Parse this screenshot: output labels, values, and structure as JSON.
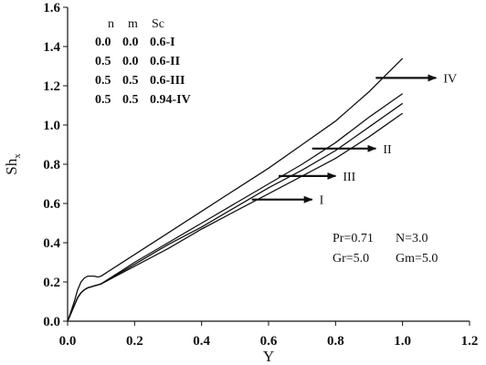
{
  "chart_data": {
    "type": "line",
    "xlabel": "Y",
    "ylabel": "Sh",
    "ylabel_sub": "x",
    "xlim": [
      0.0,
      1.2
    ],
    "ylim": [
      0.0,
      1.6
    ],
    "xticks": [
      "0.0",
      "0.2",
      "0.4",
      "0.6",
      "0.8",
      "1.0",
      "1.2"
    ],
    "yticks": [
      "0.0",
      "0.2",
      "0.4",
      "0.6",
      "0.8",
      "1.0",
      "1.2",
      "1.4",
      "1.6"
    ],
    "grid": false,
    "legend_table": {
      "headers": [
        "n",
        "m",
        "Sc"
      ],
      "rows": [
        [
          "0.0",
          "0.0",
          "0.6-I"
        ],
        [
          "0.5",
          "0.0",
          "0.6-II"
        ],
        [
          "0.5",
          "0.5",
          "0.6-III"
        ],
        [
          "0.5",
          "0.5",
          "0.94-IV"
        ]
      ]
    },
    "parameters": {
      "line1": [
        "Pr=0.71",
        "N=3.0"
      ],
      "line2": [
        "Gr=5.0",
        "Gm=5.0"
      ]
    },
    "series": [
      {
        "name": "I",
        "x": [
          0,
          0.01,
          0.02,
          0.03,
          0.04,
          0.05,
          0.06,
          0.07,
          0.08,
          0.09,
          0.1,
          0.2,
          0.3,
          0.4,
          0.5,
          0.6,
          0.7,
          0.8,
          0.9,
          1.0
        ],
        "y": [
          0,
          0.04,
          0.08,
          0.12,
          0.145,
          0.16,
          0.17,
          0.175,
          0.18,
          0.185,
          0.19,
          0.28,
          0.37,
          0.47,
          0.56,
          0.65,
          0.74,
          0.83,
          0.94,
          1.06
        ]
      },
      {
        "name": "II",
        "x": [
          0,
          0.01,
          0.02,
          0.03,
          0.04,
          0.05,
          0.06,
          0.07,
          0.08,
          0.09,
          0.1,
          0.2,
          0.3,
          0.4,
          0.5,
          0.6,
          0.7,
          0.8,
          0.9,
          1.0
        ],
        "y": [
          0,
          0.04,
          0.08,
          0.12,
          0.145,
          0.16,
          0.17,
          0.175,
          0.18,
          0.185,
          0.19,
          0.3,
          0.4,
          0.5,
          0.6,
          0.7,
          0.8,
          0.91,
          1.04,
          1.16
        ]
      },
      {
        "name": "III",
        "x": [
          0,
          0.01,
          0.02,
          0.03,
          0.04,
          0.05,
          0.06,
          0.07,
          0.08,
          0.09,
          0.1,
          0.2,
          0.3,
          0.4,
          0.5,
          0.6,
          0.7,
          0.8,
          0.9,
          1.0
        ],
        "y": [
          0,
          0.04,
          0.08,
          0.12,
          0.145,
          0.16,
          0.17,
          0.175,
          0.18,
          0.185,
          0.19,
          0.29,
          0.39,
          0.48,
          0.58,
          0.68,
          0.77,
          0.87,
          0.99,
          1.11
        ]
      },
      {
        "name": "IV",
        "x": [
          0,
          0.01,
          0.02,
          0.03,
          0.04,
          0.05,
          0.06,
          0.07,
          0.08,
          0.09,
          0.1,
          0.2,
          0.3,
          0.4,
          0.5,
          0.6,
          0.7,
          0.8,
          0.9,
          1.0
        ],
        "y": [
          0,
          0.05,
          0.1,
          0.16,
          0.2,
          0.22,
          0.23,
          0.23,
          0.23,
          0.225,
          0.23,
          0.34,
          0.45,
          0.56,
          0.67,
          0.78,
          0.9,
          1.02,
          1.17,
          1.34
        ]
      }
    ],
    "annotations": [
      {
        "label": "I",
        "arrow_from": [
          0.55,
          0.62
        ],
        "arrow_to": [
          0.73,
          0.62
        ]
      },
      {
        "label": "II",
        "arrow_from": [
          0.73,
          0.88
        ],
        "arrow_to": [
          0.92,
          0.88
        ]
      },
      {
        "label": "III",
        "arrow_from": [
          0.63,
          0.74
        ],
        "arrow_to": [
          0.8,
          0.74
        ]
      },
      {
        "label": "IV",
        "arrow_from": [
          0.92,
          1.24
        ],
        "arrow_to": [
          1.1,
          1.24
        ]
      }
    ]
  }
}
